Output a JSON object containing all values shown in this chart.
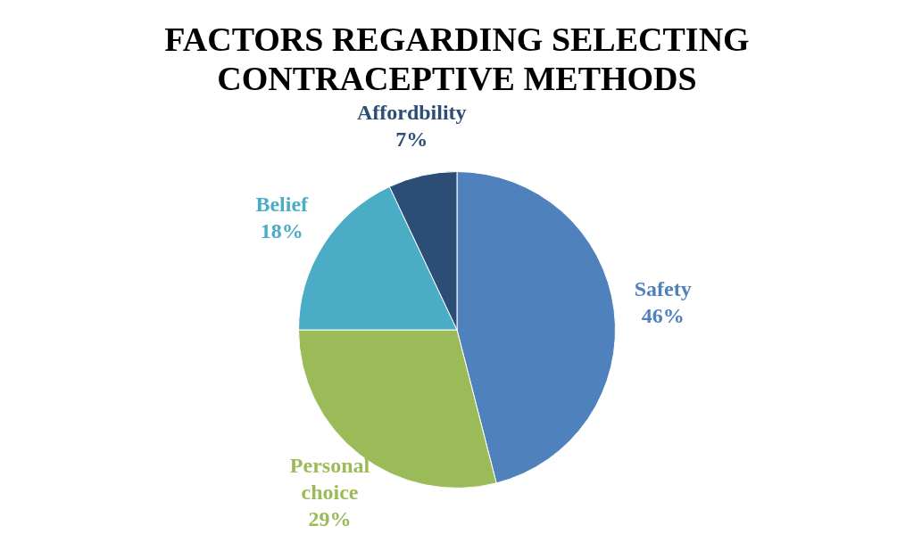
{
  "chart_data": {
    "type": "pie",
    "title": "FACTORS REGARDING SELECTING CONTRACEPTIVE METHODS",
    "categories": [
      "Safety",
      "Personal choice",
      "Belief",
      "Affordbility"
    ],
    "values": [
      46,
      29,
      18,
      7
    ],
    "colors": [
      "#4f81bd",
      "#9bbb59",
      "#4bacc6",
      "#2c4d75"
    ],
    "value_labels": [
      "46%",
      "29%",
      "18%",
      "7%"
    ],
    "legend": false
  }
}
